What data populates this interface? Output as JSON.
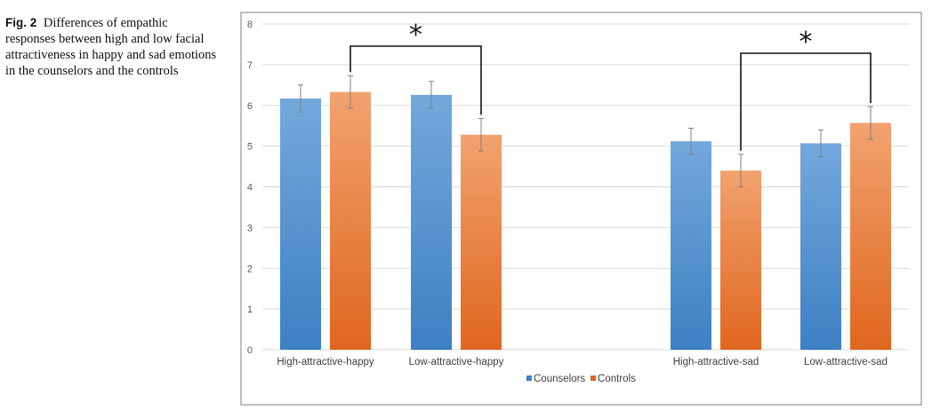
{
  "caption": {
    "label": "Fig. 2",
    "text": "Differences of empathic responses between high and low facial attractiveness in happy and sad emotions in the counselors and the controls"
  },
  "colors": {
    "counselors_top": "#74A8DD",
    "counselors_bottom": "#3D80C3",
    "controls_top": "#F2A26F",
    "controls_bottom": "#E0661F",
    "gridline": "#D9D9D9",
    "frame": "#7F7F7F",
    "errorbar": "#808080"
  },
  "chart_data": {
    "type": "bar",
    "categories": [
      "High-attractive-happy",
      "Low-attractive-happy",
      "High-attractive-sad",
      "Low-attractive-sad"
    ],
    "series": [
      {
        "name": "Counselors",
        "values": [
          6.17,
          6.26,
          5.12,
          5.07
        ],
        "errors": [
          0.33,
          0.33,
          0.32,
          0.33
        ]
      },
      {
        "name": "Controls",
        "values": [
          6.33,
          5.28,
          4.4,
          5.57
        ],
        "errors": [
          0.4,
          0.4,
          0.4,
          0.4
        ]
      }
    ],
    "ylim": [
      0,
      8
    ],
    "yticks": [
      0,
      1,
      2,
      3,
      4,
      5,
      6,
      7,
      8
    ],
    "grid": true,
    "legend": "bottom",
    "significance": [
      {
        "from": {
          "category": 0,
          "series": 1
        },
        "to": {
          "category": 1,
          "series": 1
        },
        "label": "*"
      },
      {
        "from": {
          "category": 2,
          "series": 1
        },
        "to": {
          "category": 3,
          "series": 1
        },
        "label": "*"
      }
    ]
  }
}
